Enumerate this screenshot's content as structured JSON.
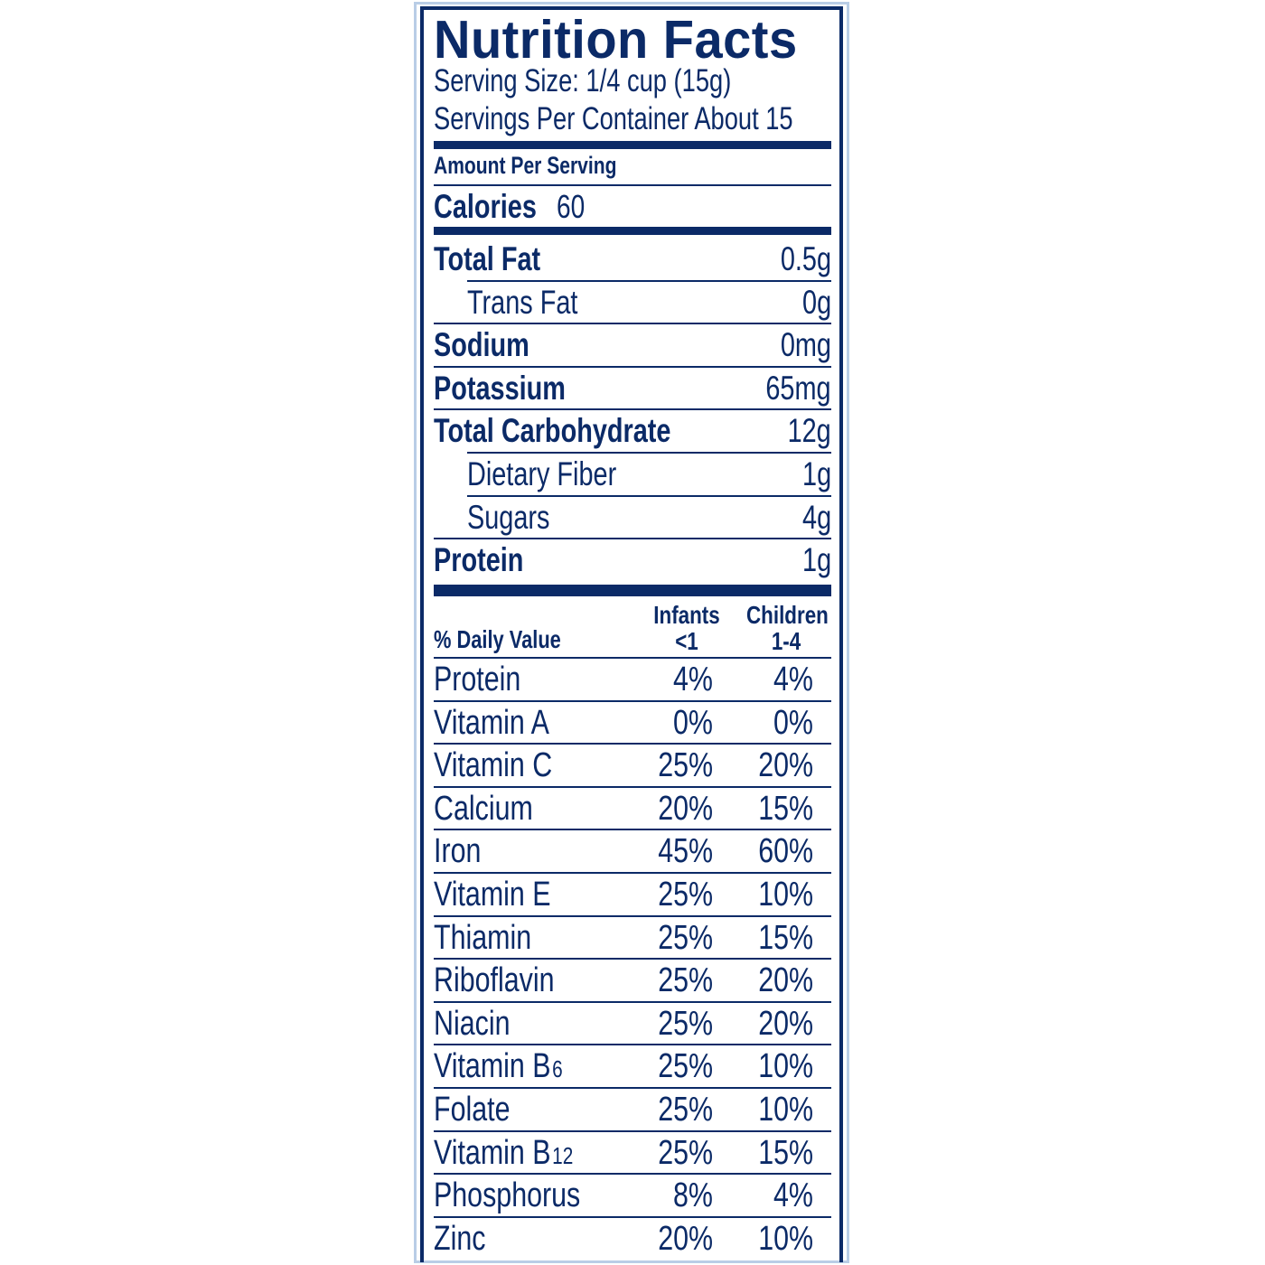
{
  "label": {
    "title": "Nutrition Facts",
    "serving_size": "Serving Size: 1/4 cup (15g)",
    "servings_per_container": "Servings Per Container  About 15",
    "amount_per_serving": "Amount Per Serving",
    "calories_label": "Calories",
    "calories_value": "60",
    "nutrients": [
      {
        "name": "Total Fat",
        "value": "0.5g",
        "style": "bold"
      },
      {
        "name": "Trans Fat",
        "value": "0g",
        "style": "indent"
      },
      {
        "name": "Sodium",
        "value": "0mg",
        "style": "bold"
      },
      {
        "name": "Potassium",
        "value": "65mg",
        "style": "bold"
      },
      {
        "name": "Total Carbohydrate",
        "value": "12g",
        "style": "bold"
      },
      {
        "name": "Dietary Fiber",
        "value": "1g",
        "style": "indent"
      },
      {
        "name": "Sugars",
        "value": "4g",
        "style": "indent"
      },
      {
        "name": "Protein",
        "value": "1g",
        "style": "bold"
      }
    ],
    "daily_value_header": "% Daily Value",
    "col_infants": [
      "Infants",
      "<1"
    ],
    "col_children": [
      "Children",
      "1-4"
    ],
    "vitamins": [
      {
        "name": "Protein",
        "infants": "4%",
        "children": "4%"
      },
      {
        "name": "Vitamin A",
        "infants": "0%",
        "children": "0%"
      },
      {
        "name": "Vitamin C",
        "infants": "25%",
        "children": "20%"
      },
      {
        "name": "Calcium",
        "infants": "20%",
        "children": "15%"
      },
      {
        "name": "Iron",
        "infants": "45%",
        "children": "60%"
      },
      {
        "name": "Vitamin E",
        "infants": "25%",
        "children": "10%"
      },
      {
        "name": "Thiamin",
        "infants": "25%",
        "children": "15%"
      },
      {
        "name": "Riboflavin",
        "infants": "25%",
        "children": "20%"
      },
      {
        "name": "Niacin",
        "infants": "25%",
        "children": "20%"
      },
      {
        "name": "Vitamin B",
        "sub": "6",
        "infants": "25%",
        "children": "10%"
      },
      {
        "name": "Folate",
        "infants": "25%",
        "children": "10%"
      },
      {
        "name": "Vitamin B",
        "sub": "12",
        "infants": "25%",
        "children": "15%"
      },
      {
        "name": "Phosphorus",
        "infants": "8%",
        "children": "4%"
      },
      {
        "name": "Zinc",
        "infants": "20%",
        "children": "10%"
      }
    ],
    "colors": {
      "ink": "#0b2a67",
      "frame": "#b9cde6"
    }
  }
}
